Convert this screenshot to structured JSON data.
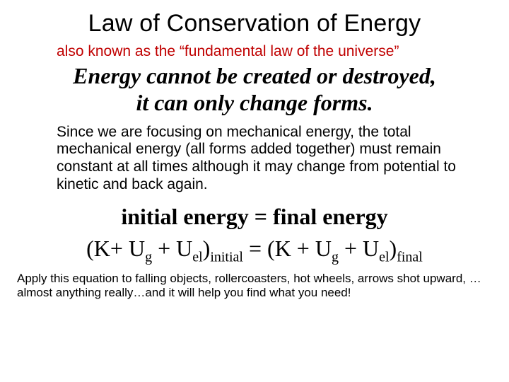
{
  "title": "Law of Conservation of Energy",
  "subtitle": "also known as the “fundamental law of the universe”",
  "main_statement_l1": "Energy cannot be created or destroyed,",
  "main_statement_l2": "it can only change forms.",
  "paragraph": "Since we are focusing on mechanical energy, the total mechanical energy (all forms added together) must remain constant at all times although it may change from potential to kinetic and back again.",
  "eq1": "initial energy = final energy",
  "eq2": {
    "open1": "(K+ U",
    "sub_g1": "g",
    "plus1": " + U",
    "sub_el1": "el",
    "close1": ")",
    "sub_initial": "initial",
    "eq": " = (K + U",
    "sub_g2": "g",
    "plus2": " + U",
    "sub_el2": "el",
    "close2": ")",
    "sub_final": "final"
  },
  "footer": "Apply this equation to falling objects, rollercoasters, hot wheels, arrows shot upward, … almost anything really…and it will help you find what you need!",
  "colors": {
    "subtitle": "#c00000",
    "text": "#000000",
    "background": "#ffffff"
  },
  "fonts": {
    "sans": "Arial",
    "serif": "Times New Roman",
    "title_size_pt": 26,
    "subtitle_size_pt": 16,
    "main_size_pt": 24,
    "para_size_pt": 16,
    "eq_size_pt": 24,
    "footer_size_pt": 13
  }
}
